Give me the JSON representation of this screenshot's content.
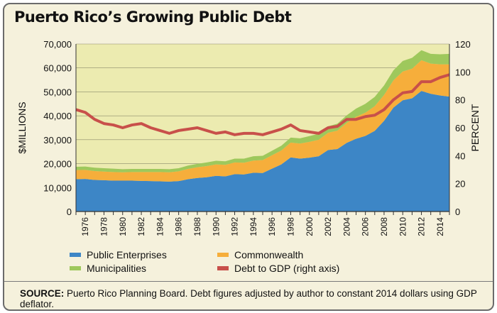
{
  "title": "Puerto Rico’s Growing Public Debt",
  "source_label": "SOURCE:",
  "source_text": " Puerto Rico Planning Board. Debt figures adjusted by author to constant 2014 dollars using GDP deflator.",
  "chart_data": {
    "type": "area",
    "title": "Puerto Rico’s Growing Public Debt",
    "ylabel": "$MILLIONS",
    "y2label": "PERCENT",
    "ylim": [
      0,
      70000
    ],
    "y2lim": [
      0,
      120
    ],
    "yticks": [
      "0",
      "10,000",
      "20,000",
      "30,000",
      "40,000",
      "50,000",
      "60,000",
      "70,000"
    ],
    "y2ticks": [
      "0",
      "20",
      "40",
      "60",
      "80",
      "100",
      "120"
    ],
    "x": [
      1975,
      1976,
      1977,
      1978,
      1979,
      1980,
      1981,
      1982,
      1983,
      1984,
      1985,
      1986,
      1987,
      1988,
      1989,
      1990,
      1991,
      1992,
      1993,
      1994,
      1995,
      1996,
      1997,
      1998,
      1999,
      2000,
      2001,
      2002,
      2003,
      2004,
      2005,
      2006,
      2007,
      2008,
      2009,
      2010,
      2011,
      2012,
      2013,
      2014,
      2015
    ],
    "xticks": [
      "1976",
      "1978",
      "1980",
      "1982",
      "1984",
      "1986",
      "1988",
      "1990",
      "1992",
      "1994",
      "1996",
      "1998",
      "2000",
      "2002",
      "2004",
      "2006",
      "2008",
      "2010",
      "2012",
      "2014"
    ],
    "series": [
      {
        "name": "Public Enterprises",
        "color": "#3d86c6",
        "axis": "left",
        "values": [
          13500,
          13600,
          13200,
          13100,
          12900,
          12900,
          12900,
          12800,
          12700,
          12600,
          12500,
          12700,
          13500,
          14000,
          14300,
          14900,
          14700,
          15600,
          15500,
          16200,
          16100,
          17900,
          19700,
          22600,
          22100,
          22500,
          23100,
          25700,
          26100,
          28700,
          30400,
          31600,
          33700,
          37900,
          43400,
          46500,
          47300,
          50400,
          49200,
          48500,
          48000
        ]
      },
      {
        "name": "Commonwealth",
        "color": "#f6ae3b",
        "axis": "left",
        "values": [
          3800,
          3800,
          3700,
          3600,
          3600,
          3500,
          3600,
          3700,
          3800,
          3900,
          3900,
          4100,
          4300,
          4500,
          4700,
          4800,
          4800,
          4900,
          4900,
          5100,
          5400,
          5600,
          5800,
          6200,
          6300,
          6600,
          6900,
          7200,
          7700,
          8300,
          9200,
          9700,
          10300,
          10800,
          11400,
          12000,
          12400,
          12800,
          12600,
          13000,
          13500
        ]
      },
      {
        "name": "Municipalities",
        "color": "#9ec85c",
        "axis": "left",
        "values": [
          1400,
          1400,
          1400,
          1400,
          1400,
          1300,
          1300,
          1300,
          1300,
          1300,
          1300,
          1300,
          1400,
          1400,
          1500,
          1500,
          1500,
          1600,
          1700,
          1800,
          1800,
          1900,
          2000,
          2100,
          2200,
          2400,
          2500,
          2700,
          2900,
          3200,
          3400,
          3700,
          3900,
          4000,
          4200,
          4400,
          4500,
          4200,
          4100,
          4200,
          4400
        ]
      },
      {
        "name": "Debt to GDP (right axis)",
        "color": "#c8504a",
        "axis": "right",
        "values": [
          73,
          71,
          66,
          63,
          62,
          60,
          62,
          63,
          60,
          58,
          56,
          58,
          59,
          60,
          58,
          56,
          57,
          55,
          56,
          56,
          55,
          57,
          59,
          62,
          58,
          57,
          56,
          60,
          61,
          66,
          66,
          68,
          69,
          73,
          80,
          85,
          86,
          93,
          93,
          96,
          98
        ]
      }
    ],
    "legend_position": "bottom",
    "grid": true
  }
}
